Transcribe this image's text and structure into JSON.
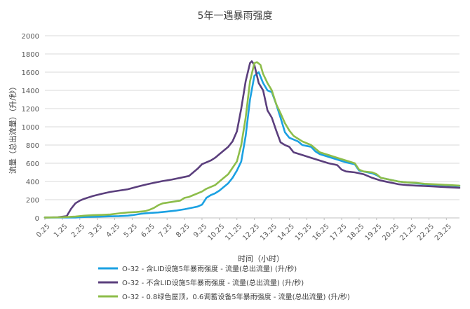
{
  "chart_data": {
    "type": "line",
    "title": "5年一遇暴雨强度",
    "xlabel": "时间（小时）",
    "ylabel": "流量（总出流量）（升/秒）",
    "ylim": [
      0,
      2000
    ],
    "yticks": [
      0,
      200,
      400,
      600,
      800,
      1000,
      1200,
      1400,
      1600,
      1800,
      2000
    ],
    "xlim": [
      0.25,
      24
    ],
    "xticks": [
      0.25,
      1.25,
      2.25,
      3.25,
      4.25,
      5.25,
      6.25,
      7.25,
      8.25,
      9.25,
      10.25,
      11.25,
      12.25,
      13.25,
      14.25,
      15.25,
      16.25,
      17.25,
      18.25,
      19.25,
      20.25,
      21.25,
      22.25,
      23.25
    ],
    "xtick_labels": [
      "0.25",
      "1.25",
      "2.25",
      "3.25",
      "4.25",
      "5.25",
      "6.25",
      "7.25",
      "8.25",
      "9.25",
      "10.25",
      "11.25",
      "12.25",
      "13.25",
      "14.25",
      "15.25",
      "16.25",
      "17.25",
      "18.25",
      "19.25",
      "20.25",
      "21.25",
      "22.25",
      "23.25"
    ],
    "grid": true,
    "legend_position": "bottom",
    "series": [
      {
        "name": "O-32 - 含LID设施5年暴雨强度 - 流量(总出流量) (升/秒)",
        "color": "#1ba1e2",
        "points": [
          [
            0.25,
            5
          ],
          [
            1.0,
            5
          ],
          [
            1.5,
            5
          ],
          [
            2.0,
            5
          ],
          [
            2.5,
            10
          ],
          [
            3.0,
            12
          ],
          [
            3.5,
            15
          ],
          [
            4.0,
            18
          ],
          [
            4.5,
            20
          ],
          [
            5.0,
            25
          ],
          [
            5.25,
            30
          ],
          [
            5.75,
            45
          ],
          [
            6.25,
            55
          ],
          [
            6.75,
            60
          ],
          [
            7.25,
            70
          ],
          [
            7.75,
            80
          ],
          [
            8.25,
            95
          ],
          [
            8.75,
            115
          ],
          [
            9.0,
            125
          ],
          [
            9.25,
            145
          ],
          [
            9.5,
            220
          ],
          [
            9.75,
            250
          ],
          [
            10.0,
            270
          ],
          [
            10.25,
            300
          ],
          [
            10.5,
            340
          ],
          [
            10.75,
            380
          ],
          [
            11.0,
            440
          ],
          [
            11.25,
            520
          ],
          [
            11.5,
            620
          ],
          [
            11.75,
            900
          ],
          [
            12.0,
            1300
          ],
          [
            12.25,
            1560
          ],
          [
            12.5,
            1600
          ],
          [
            12.75,
            1480
          ],
          [
            13.0,
            1400
          ],
          [
            13.25,
            1380
          ],
          [
            13.5,
            1250
          ],
          [
            13.75,
            1100
          ],
          [
            14.0,
            940
          ],
          [
            14.25,
            880
          ],
          [
            14.5,
            860
          ],
          [
            14.75,
            840
          ],
          [
            15.0,
            800
          ],
          [
            15.25,
            790
          ],
          [
            15.5,
            780
          ],
          [
            15.75,
            730
          ],
          [
            16.0,
            700
          ],
          [
            16.5,
            670
          ],
          [
            17.0,
            640
          ],
          [
            17.5,
            610
          ],
          [
            18.0,
            590
          ],
          [
            18.25,
            520
          ],
          [
            18.5,
            510
          ],
          [
            19.0,
            490
          ],
          [
            19.25,
            470
          ],
          [
            19.5,
            440
          ],
          [
            20.0,
            420
          ],
          [
            20.5,
            400
          ],
          [
            21.0,
            390
          ],
          [
            21.5,
            380
          ],
          [
            22.0,
            370
          ],
          [
            22.5,
            365
          ],
          [
            23.0,
            360
          ],
          [
            23.5,
            355
          ],
          [
            24.0,
            350
          ]
        ]
      },
      {
        "name": "O-32 - 不含LID设施5年暴雨强度 - 流量(总出流量) (升/秒)",
        "color": "#5b3f7d",
        "points": [
          [
            0.25,
            5
          ],
          [
            1.0,
            8
          ],
          [
            1.5,
            20
          ],
          [
            1.75,
            100
          ],
          [
            2.0,
            160
          ],
          [
            2.25,
            190
          ],
          [
            2.5,
            210
          ],
          [
            3.0,
            240
          ],
          [
            3.5,
            265
          ],
          [
            4.0,
            285
          ],
          [
            4.5,
            300
          ],
          [
            5.0,
            315
          ],
          [
            5.5,
            340
          ],
          [
            6.0,
            365
          ],
          [
            6.5,
            385
          ],
          [
            7.0,
            405
          ],
          [
            7.5,
            420
          ],
          [
            8.0,
            440
          ],
          [
            8.5,
            460
          ],
          [
            8.75,
            500
          ],
          [
            9.0,
            540
          ],
          [
            9.25,
            590
          ],
          [
            9.5,
            610
          ],
          [
            9.75,
            630
          ],
          [
            10.0,
            660
          ],
          [
            10.25,
            700
          ],
          [
            10.5,
            740
          ],
          [
            10.75,
            780
          ],
          [
            11.0,
            840
          ],
          [
            11.25,
            950
          ],
          [
            11.5,
            1200
          ],
          [
            11.75,
            1500
          ],
          [
            12.0,
            1700
          ],
          [
            12.1,
            1720
          ],
          [
            12.25,
            1680
          ],
          [
            12.5,
            1480
          ],
          [
            12.75,
            1400
          ],
          [
            13.0,
            1180
          ],
          [
            13.25,
            1100
          ],
          [
            13.5,
            960
          ],
          [
            13.75,
            830
          ],
          [
            14.0,
            800
          ],
          [
            14.25,
            780
          ],
          [
            14.5,
            720
          ],
          [
            15.0,
            690
          ],
          [
            15.5,
            660
          ],
          [
            16.0,
            630
          ],
          [
            16.5,
            600
          ],
          [
            17.0,
            580
          ],
          [
            17.25,
            530
          ],
          [
            17.5,
            510
          ],
          [
            18.0,
            500
          ],
          [
            18.5,
            480
          ],
          [
            19.0,
            440
          ],
          [
            19.5,
            410
          ],
          [
            20.0,
            390
          ],
          [
            20.5,
            370
          ],
          [
            21.0,
            360
          ],
          [
            21.5,
            355
          ],
          [
            22.0,
            350
          ],
          [
            22.5,
            345
          ],
          [
            23.0,
            340
          ],
          [
            23.5,
            335
          ],
          [
            24.0,
            330
          ]
        ]
      },
      {
        "name": "O-32 - 0.8绿色屋顶，0.6调蓄设备5年暴雨强度 - 流量(总出流量) (升/秒)",
        "color": "#8dbd4a",
        "points": [
          [
            0.25,
            5
          ],
          [
            1.0,
            6
          ],
          [
            1.5,
            10
          ],
          [
            2.0,
            15
          ],
          [
            2.5,
            25
          ],
          [
            3.0,
            30
          ],
          [
            3.5,
            33
          ],
          [
            4.0,
            38
          ],
          [
            4.5,
            50
          ],
          [
            5.0,
            60
          ],
          [
            5.5,
            65
          ],
          [
            6.0,
            75
          ],
          [
            6.25,
            90
          ],
          [
            6.5,
            110
          ],
          [
            6.75,
            140
          ],
          [
            7.0,
            160
          ],
          [
            7.5,
            175
          ],
          [
            8.0,
            190
          ],
          [
            8.25,
            220
          ],
          [
            8.5,
            230
          ],
          [
            8.75,
            250
          ],
          [
            9.0,
            270
          ],
          [
            9.25,
            290
          ],
          [
            9.5,
            320
          ],
          [
            9.75,
            340
          ],
          [
            10.0,
            360
          ],
          [
            10.25,
            400
          ],
          [
            10.5,
            440
          ],
          [
            10.75,
            480
          ],
          [
            11.0,
            550
          ],
          [
            11.25,
            620
          ],
          [
            11.5,
            800
          ],
          [
            11.75,
            1100
          ],
          [
            12.0,
            1500
          ],
          [
            12.25,
            1700
          ],
          [
            12.4,
            1710
          ],
          [
            12.6,
            1680
          ],
          [
            12.75,
            1580
          ],
          [
            13.0,
            1480
          ],
          [
            13.25,
            1400
          ],
          [
            13.5,
            1250
          ],
          [
            13.75,
            1150
          ],
          [
            14.0,
            1040
          ],
          [
            14.25,
            960
          ],
          [
            14.5,
            900
          ],
          [
            15.0,
            840
          ],
          [
            15.5,
            800
          ],
          [
            15.75,
            760
          ],
          [
            16.0,
            720
          ],
          [
            16.5,
            690
          ],
          [
            17.0,
            660
          ],
          [
            17.5,
            630
          ],
          [
            18.0,
            600
          ],
          [
            18.25,
            530
          ],
          [
            18.5,
            510
          ],
          [
            19.0,
            500
          ],
          [
            19.25,
            480
          ],
          [
            19.5,
            440
          ],
          [
            20.0,
            420
          ],
          [
            20.5,
            400
          ],
          [
            21.0,
            390
          ],
          [
            21.5,
            385
          ],
          [
            22.0,
            375
          ],
          [
            22.5,
            370
          ],
          [
            23.0,
            365
          ],
          [
            23.5,
            360
          ],
          [
            24.0,
            355
          ]
        ]
      }
    ]
  }
}
